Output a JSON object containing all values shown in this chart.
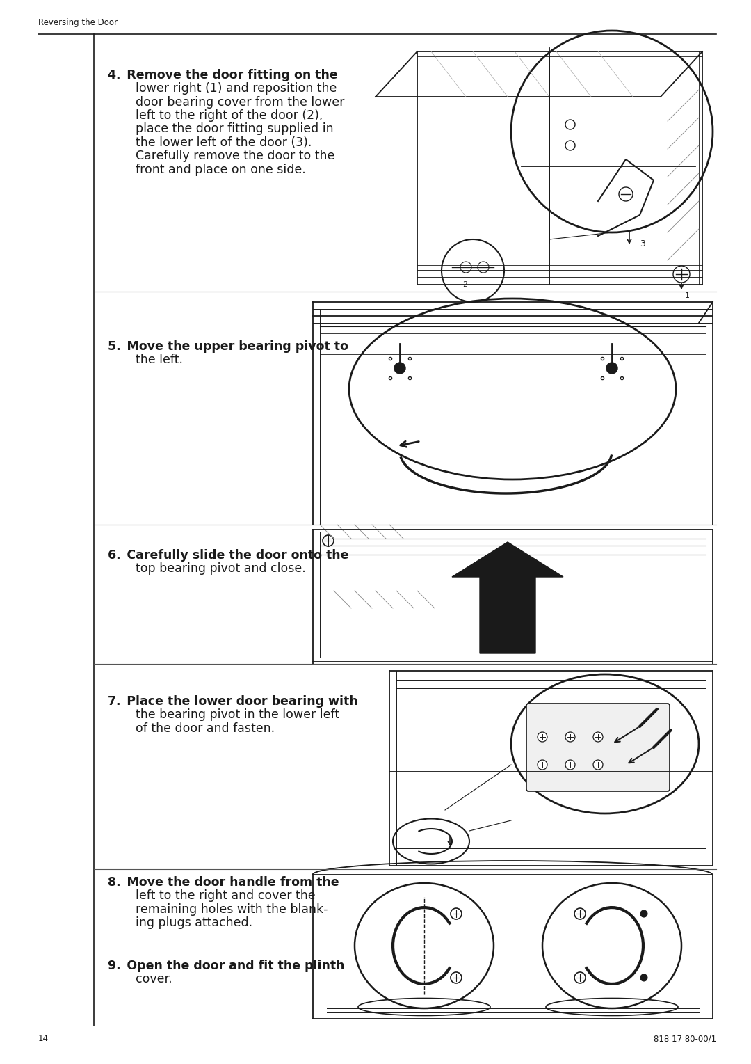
{
  "page_number": "14",
  "doc_number": "818 17 80-00/1",
  "header_text": "Reversing the Door",
  "bg": "#ffffff",
  "lc": "#1a1a1a",
  "step4_bold": "4. Remove the door fitting on the",
  "step4_lines": [
    "lower right (1) and reposition the",
    "door bearing cover from the lower",
    "left to the right of the door (2),",
    "place the door fitting supplied in",
    "the lower left of the door (3).",
    "Carefully remove the door to the",
    "front and place on one side."
  ],
  "step5_bold": "5. Move the upper bearing pivot to",
  "step5_lines": [
    "the left."
  ],
  "step6_bold": "6. Carefully slide the door onto the",
  "step6_lines": [
    "top bearing pivot and close."
  ],
  "step7_bold": "7. Place the lower door bearing with",
  "step7_lines": [
    "the bearing pivot in the lower left",
    "of the door and fasten."
  ],
  "step8_bold": "8. Move the door handle from the",
  "step8_lines": [
    "left to the right and cover the",
    "remaining holes with the blank-",
    "ing plugs attached."
  ],
  "step9_bold": "9. Open the door and fit the plinth",
  "step9_lines": [
    "cover."
  ],
  "font_size_header": 8.5,
  "font_size_step": 12.5,
  "font_size_small": 9
}
